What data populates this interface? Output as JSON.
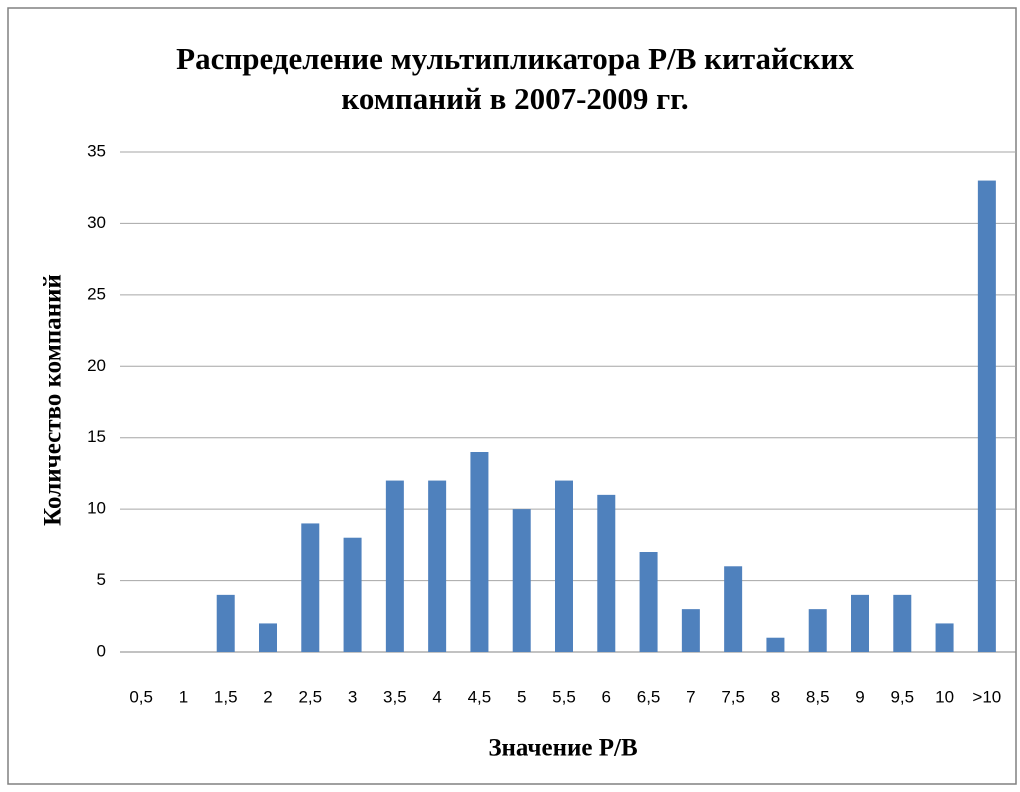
{
  "chart_data": {
    "type": "bar",
    "title": [
      "Распределение мультипликатора P/B китайских",
      "компаний в 2007-2009 гг."
    ],
    "x_label": "Значение P/B",
    "y_label": "Количество компаний",
    "categories": [
      "0,5",
      "1",
      "1,5",
      "2",
      "2,5",
      "3",
      "3,5",
      "4",
      "4,5",
      "5",
      "5,5",
      "6",
      "6,5",
      "7",
      "7,5",
      "8",
      "8,5",
      "9",
      "9,5",
      "10",
      ">10"
    ],
    "values": [
      0,
      0,
      4,
      2,
      9,
      8,
      12,
      12,
      14,
      10,
      12,
      11,
      7,
      3,
      6,
      1,
      3,
      4,
      4,
      2,
      33
    ],
    "color": "#4f81bd",
    "ylim": [
      0,
      35
    ],
    "yticks": [
      0,
      5,
      10,
      15,
      20,
      25,
      30,
      35
    ],
    "grid": true
  }
}
